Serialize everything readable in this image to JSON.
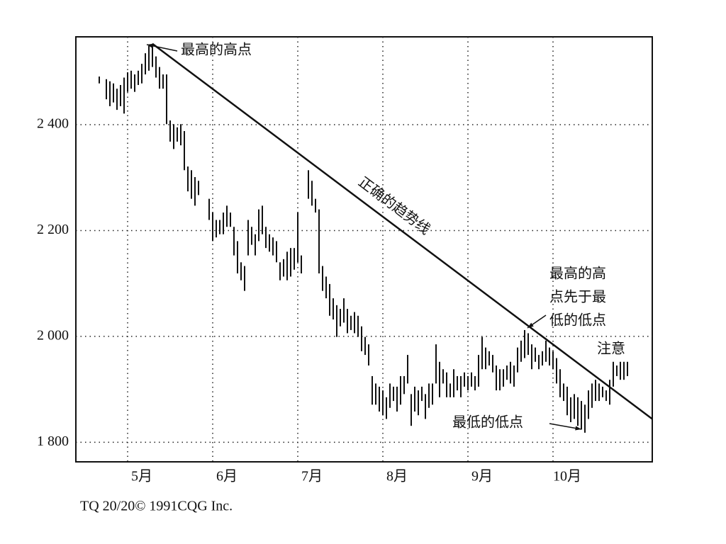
{
  "chart_data": {
    "type": "range",
    "x": [
      28,
      30,
      31,
      32,
      33,
      34,
      35,
      36,
      37,
      38,
      39,
      40,
      41,
      42,
      43,
      44,
      45,
      46,
      47,
      48,
      49,
      50,
      51,
      52,
      53,
      54,
      55,
      56,
      59,
      60,
      61,
      62,
      63,
      64,
      65,
      66,
      67,
      68,
      69,
      70,
      71,
      72,
      73,
      74,
      75,
      76,
      77,
      78,
      79,
      80,
      81,
      82,
      83,
      84,
      85,
      87,
      88,
      89,
      90,
      91,
      92,
      93,
      94,
      95,
      96,
      97,
      98,
      99,
      100,
      101,
      102,
      103,
      104,
      105,
      106,
      107,
      108,
      109,
      110,
      111,
      112,
      113,
      114,
      115,
      116,
      117,
      118,
      119,
      120,
      121,
      122,
      123,
      124,
      125,
      126,
      127,
      128,
      129,
      130,
      131,
      132,
      133,
      134,
      135,
      136,
      137,
      138,
      139,
      140,
      141,
      142,
      143,
      144,
      145,
      146,
      147,
      148,
      149,
      150,
      151,
      152,
      153,
      154,
      155,
      156,
      157,
      158,
      159,
      160,
      161,
      162,
      163,
      164,
      165,
      166,
      167,
      168,
      169,
      170,
      171,
      172,
      173,
      174,
      175,
      176,
      177
    ],
    "high": [
      2491,
      2486,
      2482,
      2478,
      2468,
      2475,
      2489,
      2499,
      2502,
      2495,
      2502,
      2515,
      2535,
      2549,
      2553,
      2529,
      2509,
      2495,
      2495,
      2408,
      2401,
      2395,
      2401,
      2388,
      2321,
      2314,
      2301,
      2294,
      2260,
      2234,
      2220,
      2220,
      2234,
      2247,
      2234,
      2207,
      2180,
      2140,
      2133,
      2220,
      2207,
      2193,
      2240,
      2247,
      2207,
      2193,
      2187,
      2180,
      2140,
      2146,
      2160,
      2167,
      2167,
      2234,
      2153,
      2314,
      2294,
      2260,
      2240,
      2133,
      2113,
      2099,
      2072,
      2059,
      2052,
      2072,
      2052,
      2039,
      2046,
      2039,
      2019,
      1999,
      1985,
      1925,
      1911,
      1905,
      1898,
      1885,
      1911,
      1905,
      1905,
      1925,
      1925,
      1965,
      1891,
      1905,
      1898,
      1905,
      1891,
      1911,
      1911,
      1985,
      1952,
      1938,
      1932,
      1911,
      1938,
      1925,
      1925,
      1932,
      1925,
      1932,
      1925,
      1965,
      1999,
      1979,
      1972,
      1965,
      1945,
      1938,
      1938,
      1945,
      1952,
      1945,
      1979,
      1992,
      2012,
      2006,
      1985,
      1979,
      1965,
      1972,
      1992,
      1979,
      1972,
      1959,
      1938,
      1911,
      1905,
      1885,
      1891,
      1885,
      1878,
      1871,
      1898,
      1911,
      1918,
      1911,
      1905,
      1898,
      1918,
      1952,
      1945,
      1952,
      1952,
      1952
    ],
    "low": [
      2478,
      2448,
      2435,
      2442,
      2428,
      2435,
      2421,
      2462,
      2468,
      2462,
      2475,
      2478,
      2495,
      2502,
      2509,
      2489,
      2468,
      2468,
      2401,
      2368,
      2354,
      2368,
      2361,
      2314,
      2274,
      2260,
      2247,
      2267,
      2220,
      2180,
      2187,
      2193,
      2193,
      2207,
      2207,
      2153,
      2119,
      2106,
      2086,
      2153,
      2173,
      2153,
      2180,
      2193,
      2167,
      2160,
      2153,
      2140,
      2106,
      2113,
      2106,
      2113,
      2126,
      2140,
      2119,
      2260,
      2247,
      2234,
      2119,
      2086,
      2072,
      2039,
      2032,
      1999,
      2019,
      2026,
      2006,
      2012,
      2006,
      1999,
      1972,
      1965,
      1945,
      1871,
      1871,
      1858,
      1851,
      1844,
      1865,
      1878,
      1858,
      1871,
      1891,
      1911,
      1831,
      1858,
      1851,
      1878,
      1844,
      1865,
      1871,
      1911,
      1885,
      1911,
      1885,
      1885,
      1885,
      1898,
      1885,
      1905,
      1898,
      1905,
      1898,
      1905,
      1938,
      1938,
      1945,
      1932,
      1898,
      1898,
      1905,
      1918,
      1911,
      1905,
      1932,
      1952,
      1959,
      1965,
      1938,
      1952,
      1938,
      1945,
      1952,
      1945,
      1938,
      1911,
      1885,
      1878,
      1851,
      1838,
      1844,
      1831,
      1824,
      1818,
      1844,
      1865,
      1878,
      1878,
      1885,
      1878,
      1871,
      1905,
      1925,
      1918,
      1918,
      1925
    ],
    "color": "#111111",
    "xlim": [
      21.4,
      184
    ],
    "ylim": [
      1763,
      2566
    ],
    "xticks": [
      {
        "value": 36,
        "label": "5月"
      },
      {
        "value": 60,
        "label": "6月"
      },
      {
        "value": 84,
        "label": "7月"
      },
      {
        "value": 108,
        "label": "8月"
      },
      {
        "value": 132,
        "label": "9月"
      },
      {
        "value": 156,
        "label": "10月"
      }
    ],
    "yticks": [
      {
        "value": 1800,
        "label": "1 800"
      },
      {
        "value": 2000,
        "label": "2 000"
      },
      {
        "value": 2200,
        "label": "2 200"
      },
      {
        "value": 2400,
        "label": "2 400"
      }
    ],
    "grid": true,
    "trendline": {
      "label": "正确的趋势线",
      "x": [
        43,
        184
      ],
      "y": [
        2553,
        1844
      ]
    },
    "annotations": [
      {
        "text": [
          "最高的高点"
        ]
      },
      {
        "text": [
          "最高的高",
          "点先于最",
          "低的低点"
        ]
      },
      {
        "text": [
          "注意"
        ]
      },
      {
        "text": [
          "最低的低点"
        ]
      }
    ],
    "source": "TQ 20/20© 1991CQG Inc."
  }
}
